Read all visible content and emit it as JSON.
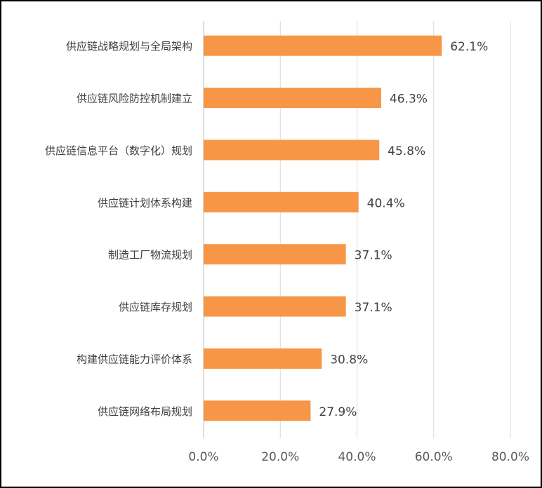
{
  "chart_data": {
    "type": "bar",
    "orientation": "horizontal",
    "categories": [
      "供应链战略规划与全局架构",
      "供应链风险防控机制建立",
      "供应链信息平台（数字化）规划",
      "供应链计划体系构建",
      "制造工厂物流规划",
      "供应链库存规划",
      "构建供应链能力评价体系",
      "供应链网络布局规划"
    ],
    "values": [
      62.1,
      46.3,
      45.8,
      40.4,
      37.1,
      37.1,
      30.8,
      27.9
    ],
    "value_labels": [
      "62.1%",
      "46.3%",
      "45.8%",
      "40.4%",
      "37.1%",
      "37.1%",
      "30.8%",
      "27.9%"
    ],
    "x_ticks": [
      "0.0%",
      "20.0%",
      "40.0%",
      "60.0%",
      "80.0%"
    ],
    "xlim": [
      0,
      80
    ],
    "grid": "vertical",
    "bar_color": "#F79646",
    "title": "",
    "xlabel": "",
    "ylabel": ""
  }
}
